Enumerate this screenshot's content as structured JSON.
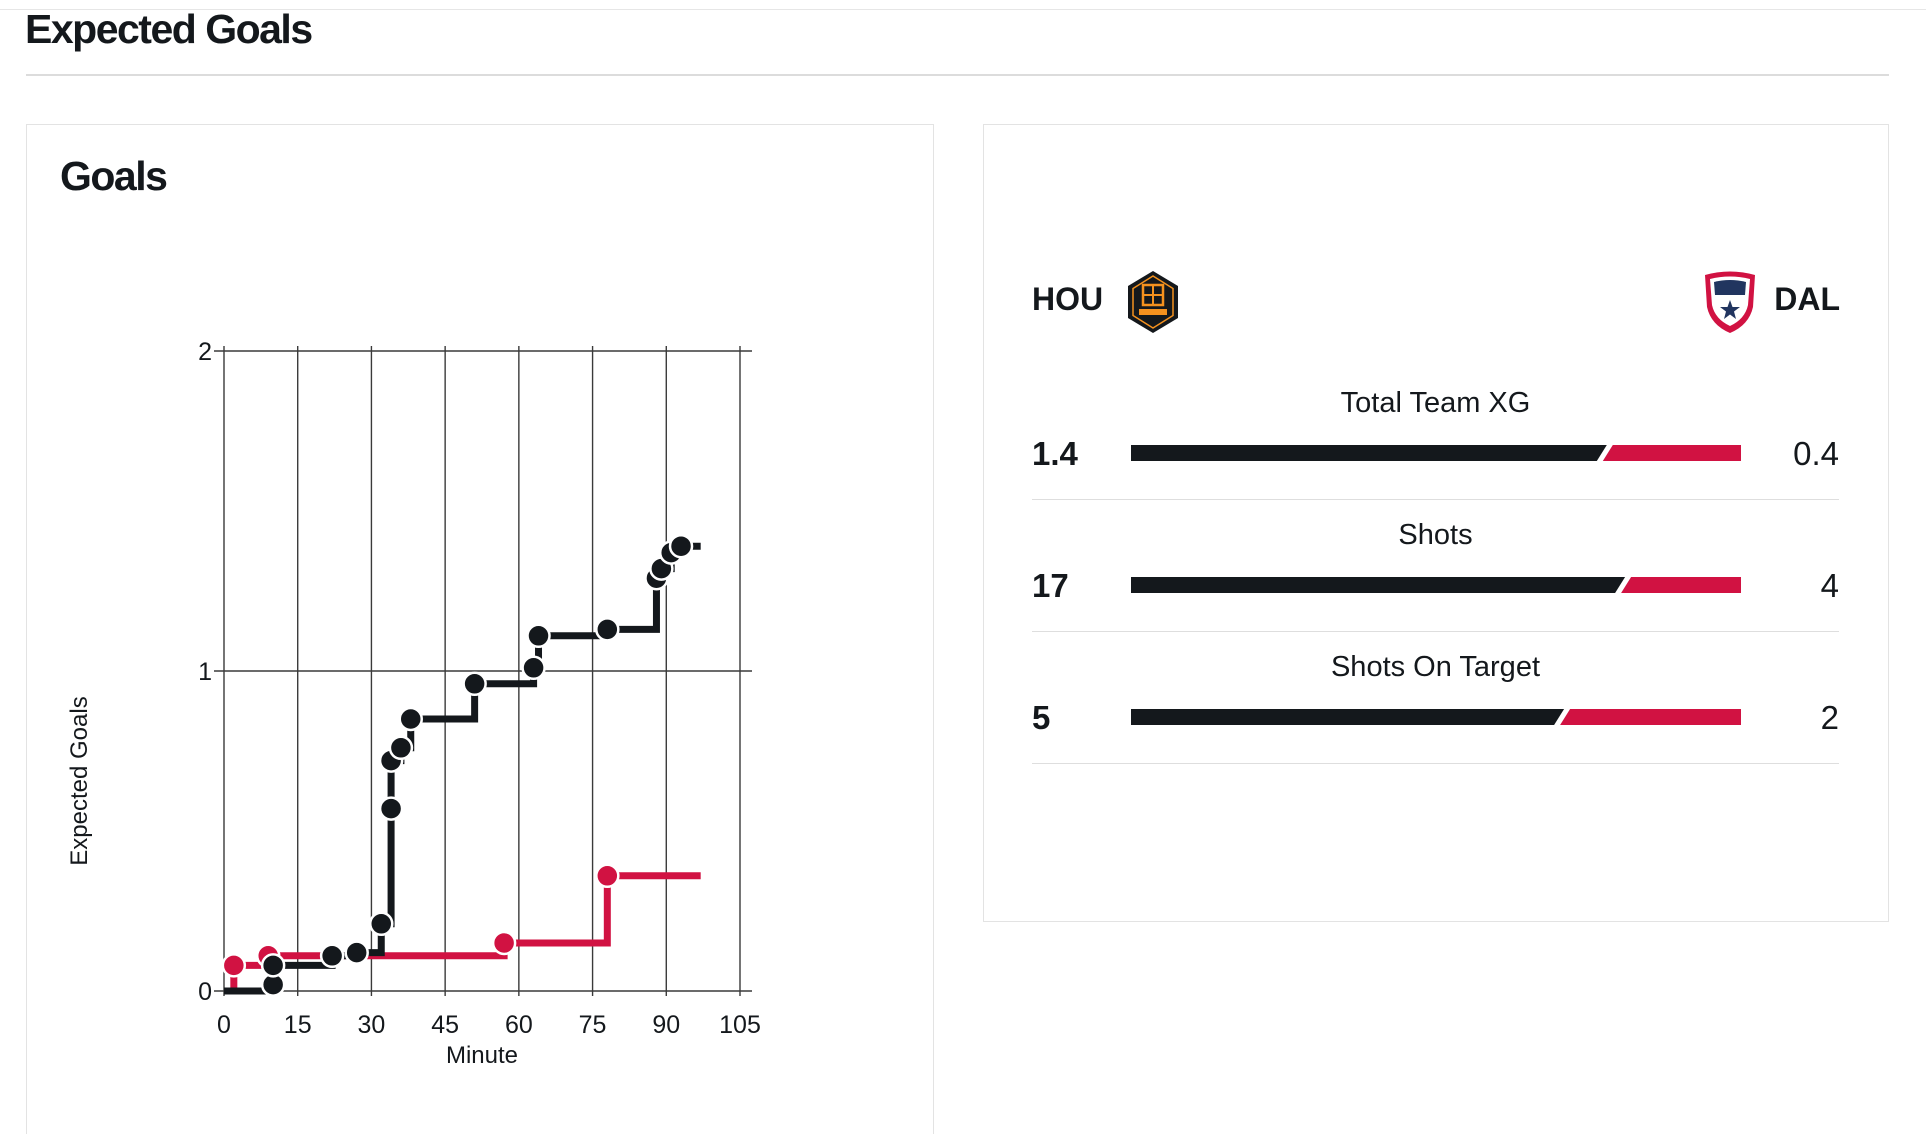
{
  "page": {
    "title": "Expected Goals"
  },
  "chart_card": {
    "title": "Goals"
  },
  "chart_data": {
    "type": "line",
    "xlabel": "Minute",
    "ylabel": "Expected Goals",
    "xlim": [
      0,
      105
    ],
    "ylim": [
      0,
      2
    ],
    "x_ticks": [
      0,
      15,
      30,
      45,
      60,
      75,
      90,
      105
    ],
    "y_ticks": [
      0,
      1,
      2
    ],
    "grid": true,
    "step": true,
    "series": [
      {
        "team": "HOU",
        "color": "#14181c",
        "end_minute": 97,
        "points": [
          {
            "x": 10,
            "y": 0.02
          },
          {
            "x": 10,
            "y": 0.08
          },
          {
            "x": 22,
            "y": 0.11
          },
          {
            "x": 27,
            "y": 0.12
          },
          {
            "x": 32,
            "y": 0.21
          },
          {
            "x": 34,
            "y": 0.57
          },
          {
            "x": 34,
            "y": 0.72
          },
          {
            "x": 36,
            "y": 0.76
          },
          {
            "x": 38,
            "y": 0.85
          },
          {
            "x": 51,
            "y": 0.96
          },
          {
            "x": 63,
            "y": 1.01
          },
          {
            "x": 64,
            "y": 1.11
          },
          {
            "x": 78,
            "y": 1.13
          },
          {
            "x": 88,
            "y": 1.29
          },
          {
            "x": 89,
            "y": 1.32
          },
          {
            "x": 91,
            "y": 1.37
          },
          {
            "x": 93,
            "y": 1.39
          }
        ]
      },
      {
        "team": "DAL",
        "color": "#d11242",
        "end_minute": 97,
        "points": [
          {
            "x": 2,
            "y": 0.08
          },
          {
            "x": 9,
            "y": 0.11
          },
          {
            "x": 57,
            "y": 0.15
          },
          {
            "x": 78,
            "y": 0.36
          }
        ]
      }
    ]
  },
  "comparison": {
    "home": {
      "abbr": "HOU",
      "logo": "houston-dynamo-logo",
      "color": "#14181c"
    },
    "away": {
      "abbr": "DAL",
      "logo": "fc-dallas-logo",
      "color": "#d11242"
    },
    "stats": [
      {
        "label": "Total Team XG",
        "home": "1.4",
        "away": "0.4",
        "home_share": 0.78
      },
      {
        "label": "Shots",
        "home": "17",
        "away": "4",
        "home_share": 0.81
      },
      {
        "label": "Shots On Target",
        "home": "5",
        "away": "2",
        "home_share": 0.71
      }
    ]
  }
}
